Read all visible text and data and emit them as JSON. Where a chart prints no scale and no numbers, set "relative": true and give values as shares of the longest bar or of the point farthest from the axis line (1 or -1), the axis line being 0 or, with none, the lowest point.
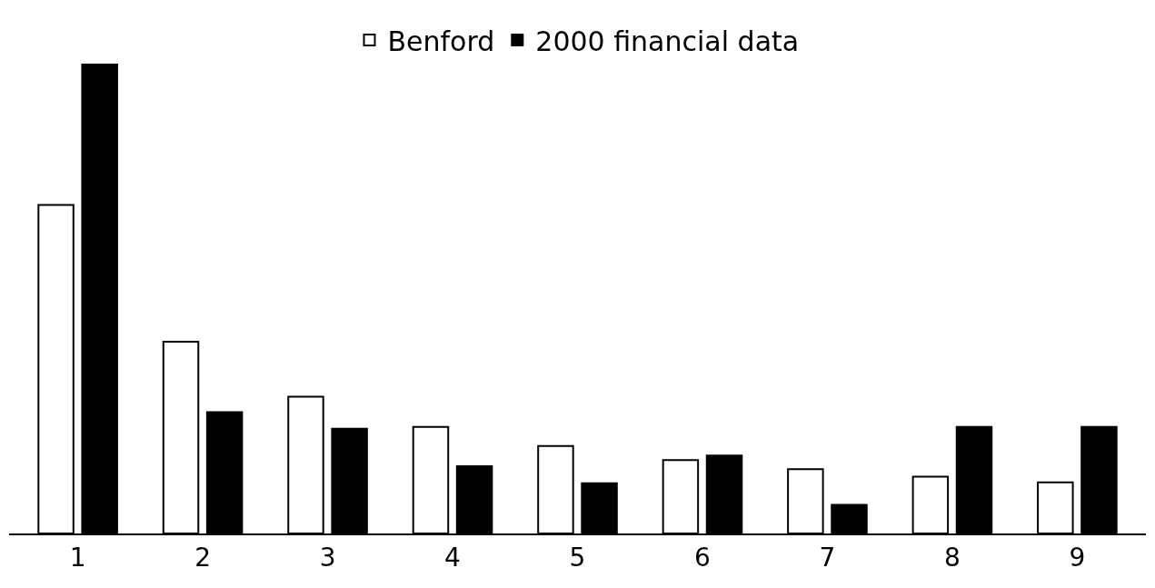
{
  "chart_data": {
    "type": "bar",
    "relative": true,
    "categories": [
      "1",
      "2",
      "3",
      "4",
      "5",
      "6",
      "7",
      "8",
      "9"
    ],
    "series": [
      {
        "name": "Benford",
        "color": "#ffffff",
        "values": [
          0.699,
          0.408,
          0.291,
          0.227,
          0.186,
          0.156,
          0.137,
          0.121,
          0.109
        ]
      },
      {
        "name": "2000 financial data",
        "color": "#000000",
        "values": [
          1.0,
          0.258,
          0.223,
          0.143,
          0.107,
          0.166,
          0.061,
          0.227,
          0.227
        ]
      }
    ],
    "legend": "top"
  }
}
